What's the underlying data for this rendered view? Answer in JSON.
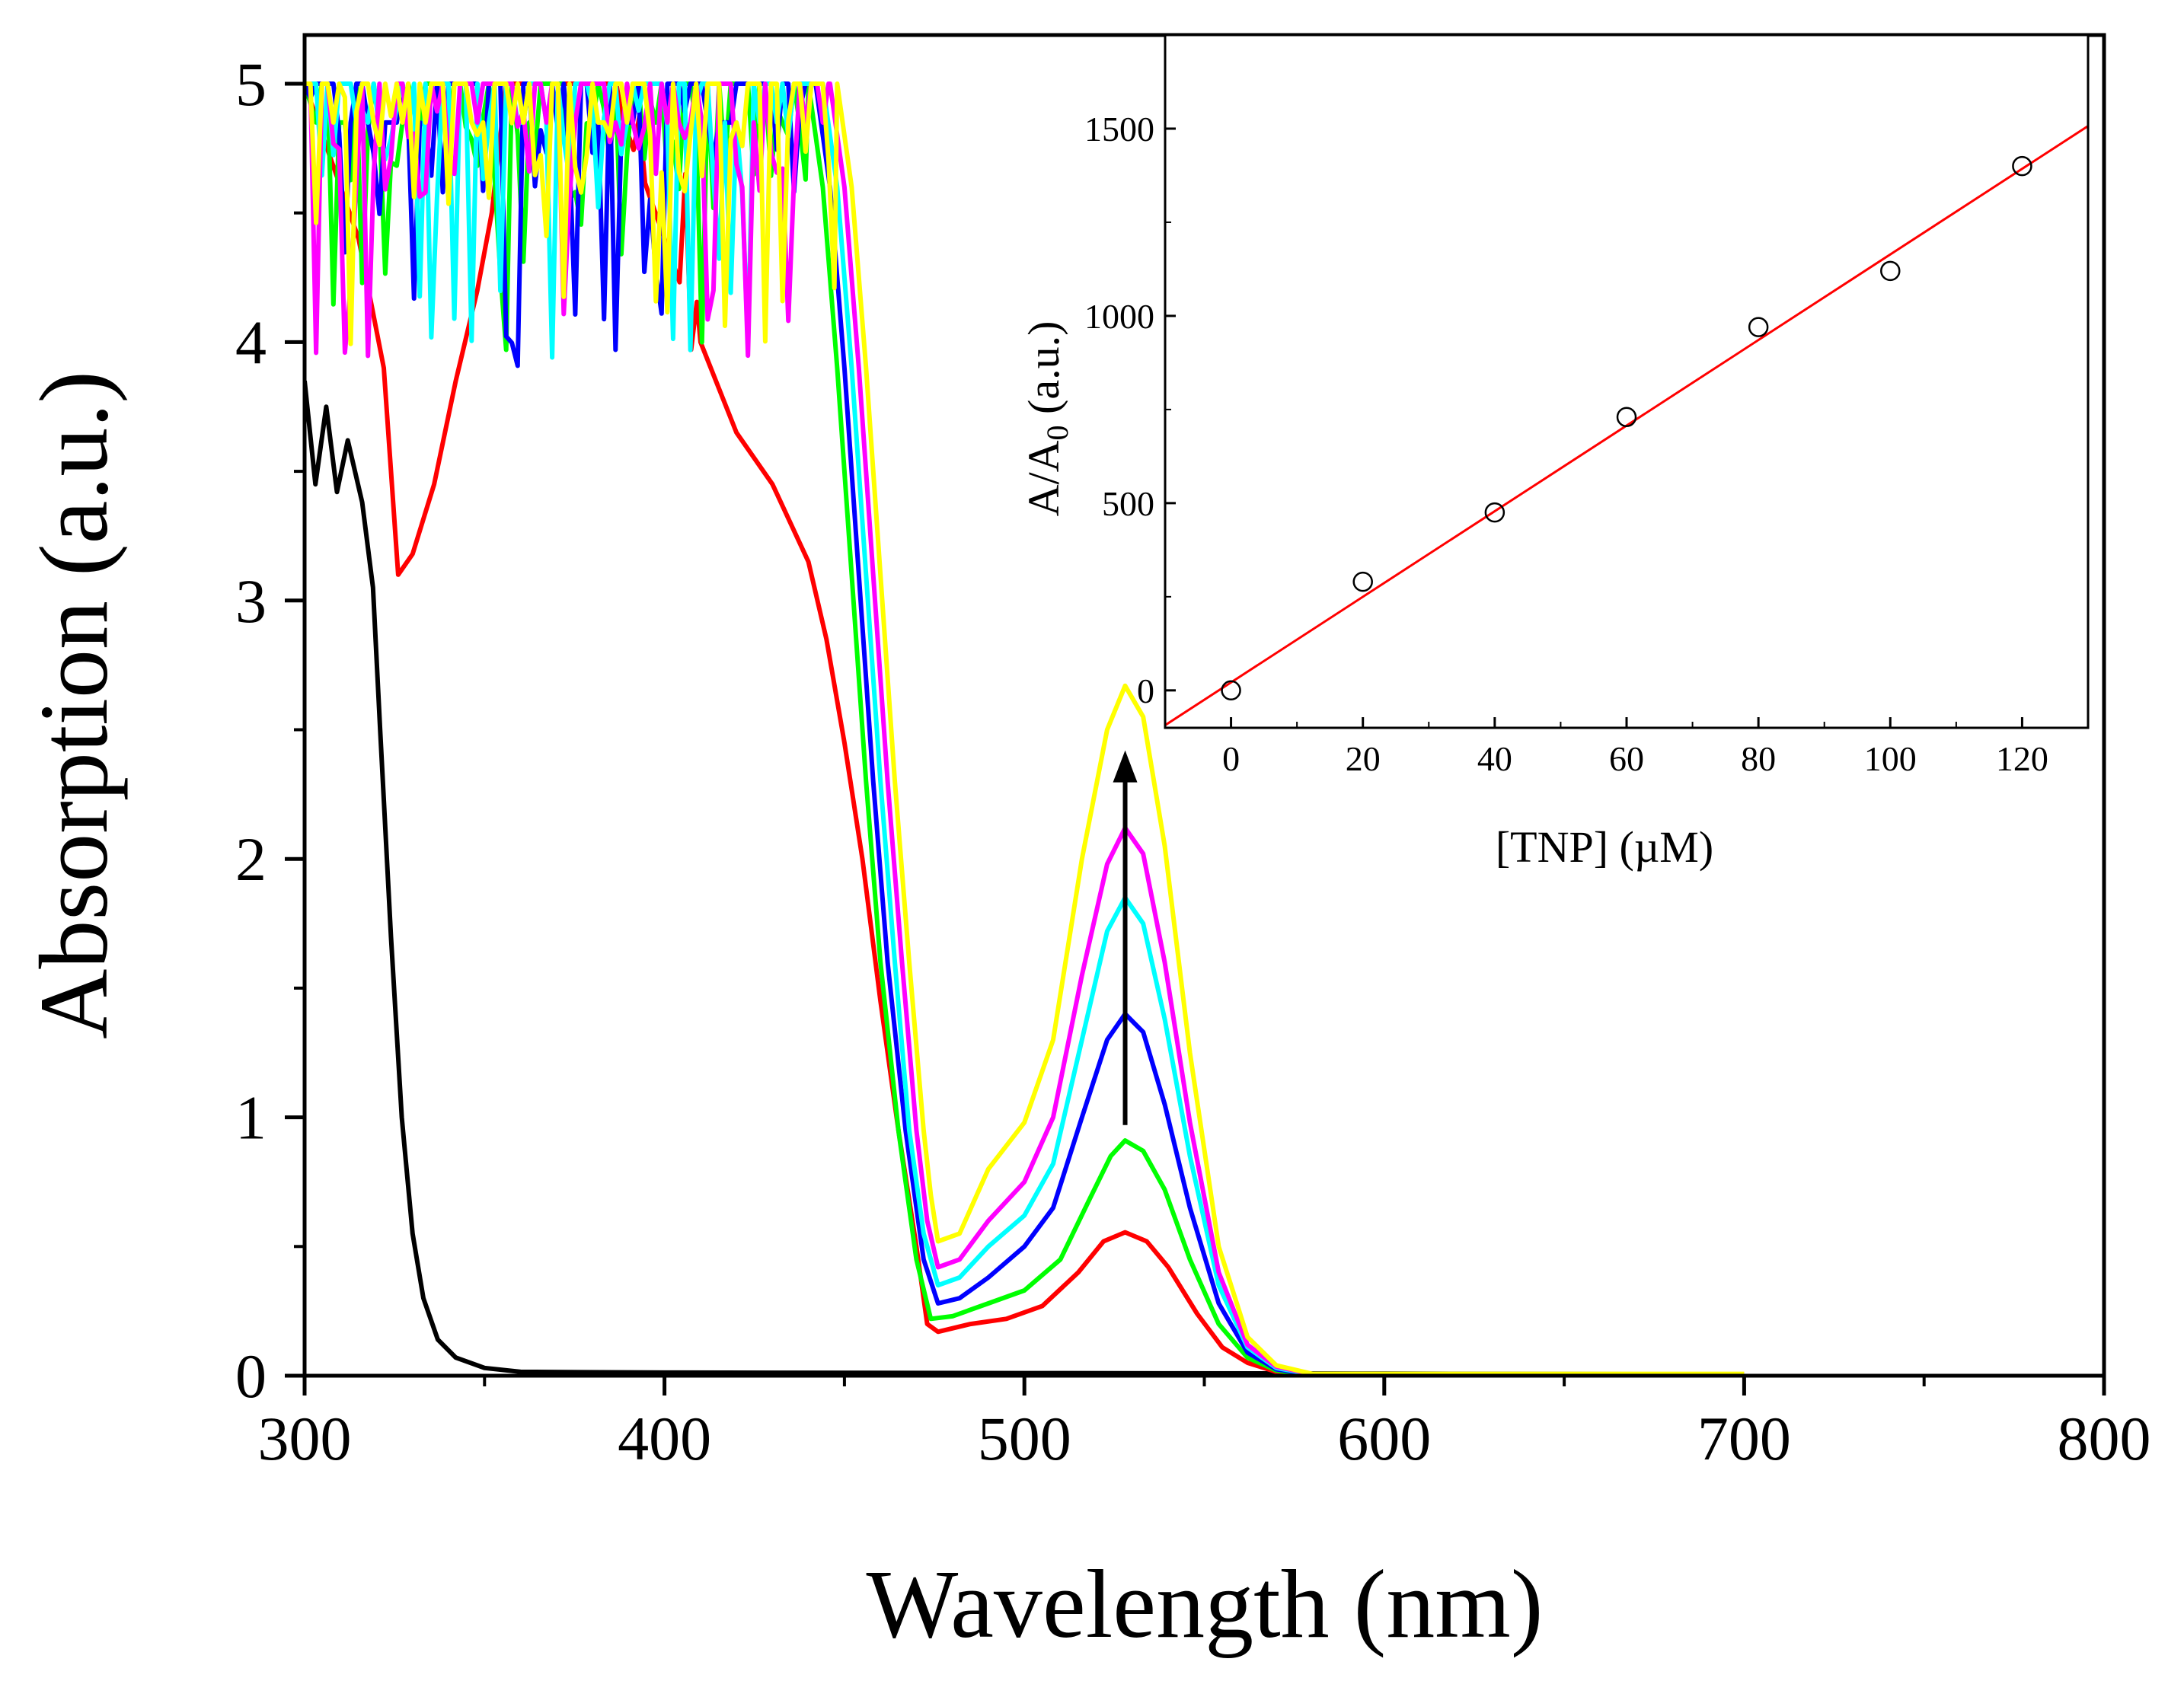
{
  "chart_data": [
    {
      "type": "line",
      "title": "",
      "xlabel": "Wavelength (nm)",
      "ylabel": "Absorption (a.u.)",
      "xlim": [
        300,
        800
      ],
      "ylim": [
        0,
        5
      ],
      "xticks": [
        300,
        400,
        500,
        600,
        700,
        800
      ],
      "yticks": [
        0,
        1,
        2,
        3,
        4,
        5
      ],
      "grid": false,
      "annotations": [
        {
          "type": "arrow",
          "direction": "up",
          "x": 528,
          "y_from": 0.97,
          "y_to": 2.42,
          "color": "#000000"
        }
      ],
      "series": [
        {
          "name": "black",
          "color": "#000000",
          "saturated_region": [
            300,
            316
          ],
          "points": [
            [
              300,
              3.85
            ],
            [
              303,
              3.45
            ],
            [
              306,
              3.75
            ],
            [
              309,
              3.42
            ],
            [
              312,
              3.62
            ],
            [
              316,
              3.38
            ],
            [
              319,
              3.05
            ],
            [
              321,
              2.5
            ],
            [
              324,
              1.7
            ],
            [
              327,
              1.0
            ],
            [
              330,
              0.55
            ],
            [
              333,
              0.3
            ],
            [
              337,
              0.14
            ],
            [
              342,
              0.07
            ],
            [
              350,
              0.03
            ],
            [
              360,
              0.015
            ],
            [
              400,
              0.012
            ],
            [
              500,
              0.01
            ],
            [
              600,
              0.008
            ],
            [
              700,
              0.005
            ]
          ]
        },
        {
          "name": "red",
          "color": "#ff0000",
          "saturated_region": [
            385,
            410
          ],
          "points": [
            [
              300,
              5.0
            ],
            [
              315,
              4.4
            ],
            [
              322,
              3.9
            ],
            [
              326,
              3.1
            ],
            [
              330,
              3.18
            ],
            [
              336,
              3.45
            ],
            [
              342,
              3.85
            ],
            [
              348,
              4.2
            ],
            [
              352,
              4.5
            ],
            [
              356,
              5.0
            ],
            [
              380,
              5.0
            ],
            [
              385,
              5.0
            ],
            [
              410,
              4.0
            ],
            [
              420,
              3.65
            ],
            [
              430,
              3.45
            ],
            [
              440,
              3.15
            ],
            [
              445,
              2.85
            ],
            [
              450,
              2.45
            ],
            [
              455,
              2.0
            ],
            [
              460,
              1.45
            ],
            [
              465,
              0.95
            ],
            [
              470,
              0.5
            ],
            [
              473,
              0.2
            ],
            [
              476,
              0.17
            ],
            [
              485,
              0.2
            ],
            [
              495,
              0.22
            ],
            [
              505,
              0.27
            ],
            [
              515,
              0.4
            ],
            [
              522,
              0.52
            ],
            [
              528,
              0.555
            ],
            [
              534,
              0.52
            ],
            [
              540,
              0.42
            ],
            [
              548,
              0.24
            ],
            [
              555,
              0.11
            ],
            [
              562,
              0.05
            ],
            [
              570,
              0.015
            ],
            [
              580,
              0.003
            ],
            [
              600,
              0.005
            ],
            [
              700,
              0.005
            ]
          ]
        },
        {
          "name": "green",
          "color": "#00ff00",
          "saturated_region": [
            300,
            440
          ],
          "points": [
            [
              300,
              5.0
            ],
            [
              440,
              5.0
            ],
            [
              444,
              4.6
            ],
            [
              448,
              3.9
            ],
            [
              452,
              3.1
            ],
            [
              456,
              2.3
            ],
            [
              460,
              1.6
            ],
            [
              465,
              0.95
            ],
            [
              470,
              0.45
            ],
            [
              474,
              0.22
            ],
            [
              480,
              0.23
            ],
            [
              490,
              0.28
            ],
            [
              500,
              0.33
            ],
            [
              510,
              0.45
            ],
            [
              518,
              0.68
            ],
            [
              524,
              0.85
            ],
            [
              528,
              0.91
            ],
            [
              533,
              0.87
            ],
            [
              539,
              0.72
            ],
            [
              546,
              0.45
            ],
            [
              554,
              0.2
            ],
            [
              562,
              0.07
            ],
            [
              570,
              0.02
            ],
            [
              580,
              0.003
            ],
            [
              700,
              0.003
            ]
          ]
        },
        {
          "name": "blue",
          "color": "#0000ff",
          "saturated_region": [
            300,
            442
          ],
          "points": [
            [
              300,
              5.0
            ],
            [
              442,
              5.0
            ],
            [
              446,
              4.6
            ],
            [
              450,
              3.9
            ],
            [
              454,
              3.1
            ],
            [
              458,
              2.3
            ],
            [
              462,
              1.6
            ],
            [
              467,
              0.95
            ],
            [
              472,
              0.45
            ],
            [
              476,
              0.28
            ],
            [
              482,
              0.3
            ],
            [
              490,
              0.38
            ],
            [
              500,
              0.5
            ],
            [
              508,
              0.65
            ],
            [
              516,
              1.0
            ],
            [
              523,
              1.3
            ],
            [
              528,
              1.4
            ],
            [
              533,
              1.33
            ],
            [
              539,
              1.05
            ],
            [
              546,
              0.65
            ],
            [
              554,
              0.28
            ],
            [
              562,
              0.09
            ],
            [
              570,
              0.025
            ],
            [
              580,
              0.004
            ],
            [
              700,
              0.004
            ]
          ]
        },
        {
          "name": "cyan",
          "color": "#00ffff",
          "saturated_region": [
            300,
            444
          ],
          "points": [
            [
              300,
              5.0
            ],
            [
              444,
              5.0
            ],
            [
              448,
              4.6
            ],
            [
              452,
              3.9
            ],
            [
              456,
              3.1
            ],
            [
              460,
              2.3
            ],
            [
              464,
              1.6
            ],
            [
              468,
              0.95
            ],
            [
              472,
              0.55
            ],
            [
              476,
              0.35
            ],
            [
              482,
              0.38
            ],
            [
              490,
              0.5
            ],
            [
              500,
              0.62
            ],
            [
              508,
              0.82
            ],
            [
              516,
              1.3
            ],
            [
              523,
              1.72
            ],
            [
              528,
              1.85
            ],
            [
              533,
              1.75
            ],
            [
              539,
              1.38
            ],
            [
              546,
              0.85
            ],
            [
              554,
              0.35
            ],
            [
              562,
              0.11
            ],
            [
              570,
              0.03
            ],
            [
              580,
              0.005
            ],
            [
              700,
              0.005
            ]
          ]
        },
        {
          "name": "magenta",
          "color": "#ff00ff",
          "saturated_region": [
            300,
            446
          ],
          "points": [
            [
              300,
              5.0
            ],
            [
              446,
              5.0
            ],
            [
              450,
              4.6
            ],
            [
              454,
              3.9
            ],
            [
              458,
              3.1
            ],
            [
              462,
              2.3
            ],
            [
              466,
              1.6
            ],
            [
              470,
              0.95
            ],
            [
              473,
              0.6
            ],
            [
              476,
              0.42
            ],
            [
              482,
              0.45
            ],
            [
              490,
              0.6
            ],
            [
              500,
              0.75
            ],
            [
              508,
              1.0
            ],
            [
              516,
              1.55
            ],
            [
              523,
              1.98
            ],
            [
              528,
              2.12
            ],
            [
              533,
              2.02
            ],
            [
              539,
              1.6
            ],
            [
              546,
              0.98
            ],
            [
              554,
              0.4
            ],
            [
              562,
              0.12
            ],
            [
              570,
              0.035
            ],
            [
              580,
              0.006
            ],
            [
              700,
              0.006
            ]
          ]
        },
        {
          "name": "yellow",
          "color": "#ffff00",
          "saturated_region": [
            300,
            448
          ],
          "points": [
            [
              300,
              5.0
            ],
            [
              448,
              5.0
            ],
            [
              452,
              4.6
            ],
            [
              456,
              3.9
            ],
            [
              460,
              3.1
            ],
            [
              464,
              2.3
            ],
            [
              468,
              1.6
            ],
            [
              472,
              0.95
            ],
            [
              474,
              0.7
            ],
            [
              476,
              0.52
            ],
            [
              482,
              0.55
            ],
            [
              490,
              0.8
            ],
            [
              500,
              0.98
            ],
            [
              508,
              1.3
            ],
            [
              516,
              2.0
            ],
            [
              523,
              2.5
            ],
            [
              528,
              2.67
            ],
            [
              533,
              2.55
            ],
            [
              539,
              2.05
            ],
            [
              546,
              1.25
            ],
            [
              554,
              0.5
            ],
            [
              562,
              0.15
            ],
            [
              570,
              0.04
            ],
            [
              580,
              0.007
            ],
            [
              700,
              0.007
            ]
          ]
        }
      ]
    },
    {
      "type": "scatter",
      "title": "",
      "xlabel": "[TNP] (µM)",
      "ylabel": {
        "main": "A/A",
        "subscript": "0",
        "units": " (a.u.)"
      },
      "xlim": [
        -10,
        130
      ],
      "ylim": [
        -100,
        1750
      ],
      "xticks": [
        0,
        20,
        40,
        60,
        80,
        100,
        120
      ],
      "yticks": [
        0,
        500,
        1000,
        1500
      ],
      "grid": false,
      "series": [
        {
          "name": "data",
          "marker": "open-circle",
          "color": "#000000",
          "x": [
            0,
            20,
            40,
            60,
            80,
            100,
            120
          ],
          "y": [
            0,
            290,
            475,
            730,
            970,
            1120,
            1400
          ]
        }
      ],
      "fit": {
        "name": "linear-fit",
        "color": "#ff0000",
        "x": [
          -10,
          130
        ],
        "y": [
          -93,
          1507
        ]
      }
    }
  ]
}
